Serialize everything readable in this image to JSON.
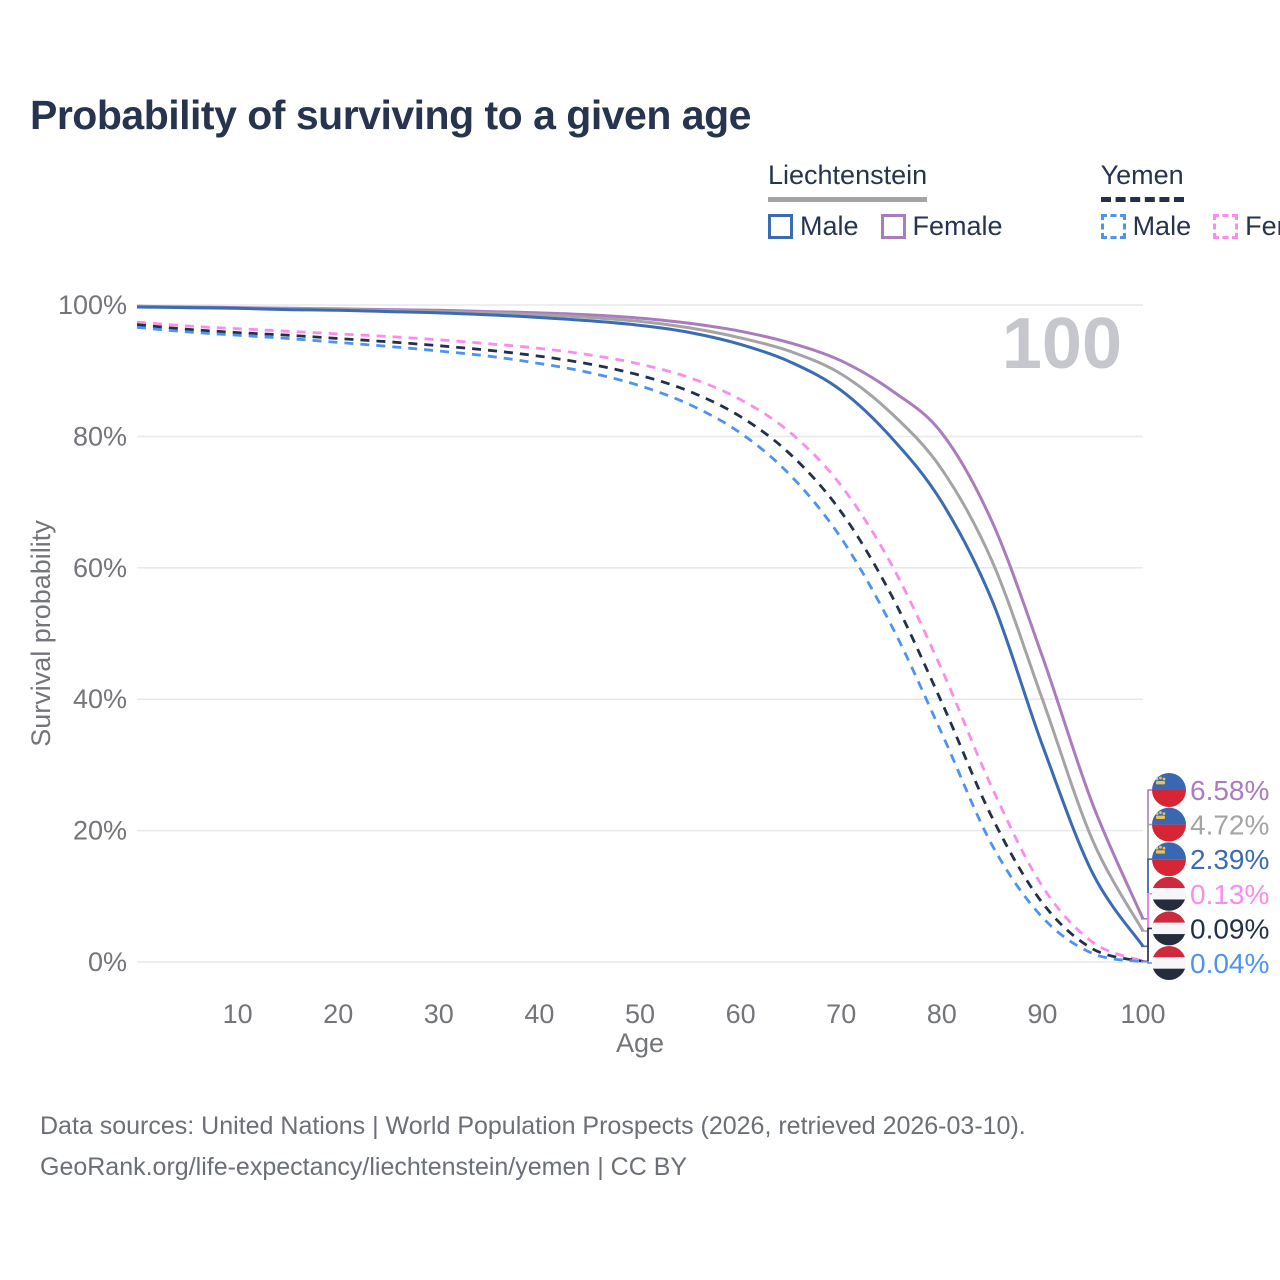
{
  "title": "Probability of surviving to a given age",
  "legend": {
    "groups": [
      {
        "name": "Liechtenstein",
        "line_style": "solid",
        "underline_color": "#a4a4a6",
        "items": [
          {
            "label": "Male",
            "color": "#3b6bb2"
          },
          {
            "label": "Female",
            "color": "#aa7cbe"
          }
        ]
      },
      {
        "name": "Yemen",
        "line_style": "dashed",
        "underline_color": "#22304a",
        "items": [
          {
            "label": "Male",
            "color": "#4e93ef"
          },
          {
            "label": "Female",
            "color": "#fb8cec"
          }
        ]
      }
    ]
  },
  "footer": {
    "line1": "Data sources: United Nations | World Population Prospects (2026, retrieved 2026-03-10).",
    "line2": "GeoRank.org/life-expectancy/liechtenstein/yemen | CC BY"
  },
  "chart_data": {
    "type": "line",
    "title": "Probability of surviving to a given age",
    "xlabel": "Age",
    "ylabel": "Survival probability",
    "xlim": [
      0,
      100
    ],
    "ylim": [
      0,
      100
    ],
    "xticks": [
      10,
      20,
      30,
      40,
      50,
      60,
      70,
      80,
      90,
      100
    ],
    "yticks": [
      0,
      20,
      40,
      60,
      80,
      100
    ],
    "ytick_suffix": "%",
    "grid": "horizontal",
    "legend_position": "top-right",
    "watermark_age": "100",
    "colors": {
      "grid": "#e9e9ec",
      "axis_text": "#73757a",
      "watermark": "#c6c7cc"
    },
    "flags": {
      "liechtenstein": {
        "top": "#3a67b1",
        "bottom": "#d62535",
        "crown": "#ecc24a"
      },
      "yemen": {
        "top": "#cd2a3e",
        "middle": "#f7f7f9",
        "bottom": "#252c3d"
      }
    },
    "series": [
      {
        "name": "Liechtenstein Female",
        "country": "Liechtenstein",
        "sex": "Female",
        "style": "solid",
        "color": "#aa7cbe",
        "end_label": "6.58%",
        "flag_icon": "liechtenstein-flag-icon",
        "points": [
          [
            0,
            99.8
          ],
          [
            5,
            99.7
          ],
          [
            10,
            99.6
          ],
          [
            15,
            99.5
          ],
          [
            20,
            99.4
          ],
          [
            25,
            99.3
          ],
          [
            30,
            99.2
          ],
          [
            35,
            99.0
          ],
          [
            40,
            98.8
          ],
          [
            45,
            98.5
          ],
          [
            50,
            98.0
          ],
          [
            55,
            97.2
          ],
          [
            60,
            96.0
          ],
          [
            65,
            94.2
          ],
          [
            70,
            91.5
          ],
          [
            75,
            87.0
          ],
          [
            80,
            80.5
          ],
          [
            85,
            67.0
          ],
          [
            90,
            46.5
          ],
          [
            95,
            24.0
          ],
          [
            100,
            6.58
          ]
        ]
      },
      {
        "name": "Liechtenstein Both sexes",
        "country": "Liechtenstein",
        "sex": "Both",
        "style": "solid",
        "color": "#a4a4a6",
        "end_label": "4.72%",
        "flag_icon": "liechtenstein-flag-icon",
        "points": [
          [
            0,
            99.8
          ],
          [
            5,
            99.6
          ],
          [
            10,
            99.5
          ],
          [
            15,
            99.4
          ],
          [
            20,
            99.3
          ],
          [
            25,
            99.2
          ],
          [
            30,
            99.0
          ],
          [
            35,
            98.8
          ],
          [
            40,
            98.5
          ],
          [
            45,
            98.1
          ],
          [
            50,
            97.5
          ],
          [
            55,
            96.5
          ],
          [
            60,
            95.0
          ],
          [
            65,
            92.9
          ],
          [
            70,
            89.5
          ],
          [
            75,
            83.5
          ],
          [
            80,
            75.0
          ],
          [
            85,
            61.0
          ],
          [
            90,
            40.0
          ],
          [
            95,
            18.5
          ],
          [
            100,
            4.72
          ]
        ]
      },
      {
        "name": "Liechtenstein Male",
        "country": "Liechtenstein",
        "sex": "Male",
        "style": "solid",
        "color": "#3b6bb2",
        "end_label": "2.39%",
        "flag_icon": "liechtenstein-flag-icon",
        "points": [
          [
            0,
            99.7
          ],
          [
            5,
            99.6
          ],
          [
            10,
            99.5
          ],
          [
            15,
            99.3
          ],
          [
            20,
            99.2
          ],
          [
            25,
            99.0
          ],
          [
            30,
            98.8
          ],
          [
            35,
            98.5
          ],
          [
            40,
            98.1
          ],
          [
            45,
            97.6
          ],
          [
            50,
            96.9
          ],
          [
            55,
            95.8
          ],
          [
            60,
            94.0
          ],
          [
            65,
            91.3
          ],
          [
            70,
            87.0
          ],
          [
            75,
            79.8
          ],
          [
            80,
            70.0
          ],
          [
            85,
            55.0
          ],
          [
            90,
            33.0
          ],
          [
            95,
            13.5
          ],
          [
            100,
            2.39
          ]
        ]
      },
      {
        "name": "Yemen Female",
        "country": "Yemen",
        "sex": "Female",
        "style": "dashed",
        "color": "#fb8cec",
        "end_label": "0.13%",
        "flag_icon": "yemen-flag-icon",
        "points": [
          [
            0,
            97.4
          ],
          [
            5,
            96.8
          ],
          [
            10,
            96.4
          ],
          [
            15,
            96.0
          ],
          [
            20,
            95.6
          ],
          [
            25,
            95.2
          ],
          [
            30,
            94.7
          ],
          [
            35,
            94.1
          ],
          [
            40,
            93.4
          ],
          [
            45,
            92.4
          ],
          [
            50,
            91.0
          ],
          [
            55,
            88.9
          ],
          [
            60,
            85.6
          ],
          [
            65,
            80.5
          ],
          [
            70,
            72.5
          ],
          [
            75,
            60.5
          ],
          [
            80,
            44.5
          ],
          [
            85,
            26.5
          ],
          [
            90,
            11.5
          ],
          [
            95,
            3.0
          ],
          [
            100,
            0.13
          ]
        ]
      },
      {
        "name": "Yemen Both sexes",
        "country": "Yemen",
        "sex": "Both",
        "style": "dashed",
        "color": "#22304a",
        "end_label": "0.09%",
        "flag_icon": "yemen-flag-icon",
        "points": [
          [
            0,
            97.0
          ],
          [
            5,
            96.3
          ],
          [
            10,
            95.8
          ],
          [
            15,
            95.4
          ],
          [
            20,
            94.9
          ],
          [
            25,
            94.4
          ],
          [
            30,
            93.8
          ],
          [
            35,
            93.1
          ],
          [
            40,
            92.2
          ],
          [
            45,
            91.0
          ],
          [
            50,
            89.3
          ],
          [
            55,
            86.8
          ],
          [
            60,
            83.0
          ],
          [
            65,
            77.2
          ],
          [
            70,
            68.5
          ],
          [
            75,
            55.8
          ],
          [
            80,
            39.5
          ],
          [
            85,
            22.0
          ],
          [
            90,
            9.0
          ],
          [
            95,
            2.0
          ],
          [
            100,
            0.09
          ]
        ]
      },
      {
        "name": "Yemen Male",
        "country": "Yemen",
        "sex": "Male",
        "style": "dashed",
        "color": "#4e93ef",
        "end_label": "0.04%",
        "flag_icon": "yemen-flag-icon",
        "points": [
          [
            0,
            96.6
          ],
          [
            5,
            95.9
          ],
          [
            10,
            95.4
          ],
          [
            15,
            94.9
          ],
          [
            20,
            94.3
          ],
          [
            25,
            93.7
          ],
          [
            30,
            93.0
          ],
          [
            35,
            92.2
          ],
          [
            40,
            91.1
          ],
          [
            45,
            89.7
          ],
          [
            50,
            87.7
          ],
          [
            55,
            84.8
          ],
          [
            60,
            80.5
          ],
          [
            65,
            74.0
          ],
          [
            70,
            64.5
          ],
          [
            75,
            51.2
          ],
          [
            80,
            34.8
          ],
          [
            85,
            17.8
          ],
          [
            90,
            6.8
          ],
          [
            95,
            1.3
          ],
          [
            100,
            0.04
          ]
        ]
      }
    ]
  }
}
